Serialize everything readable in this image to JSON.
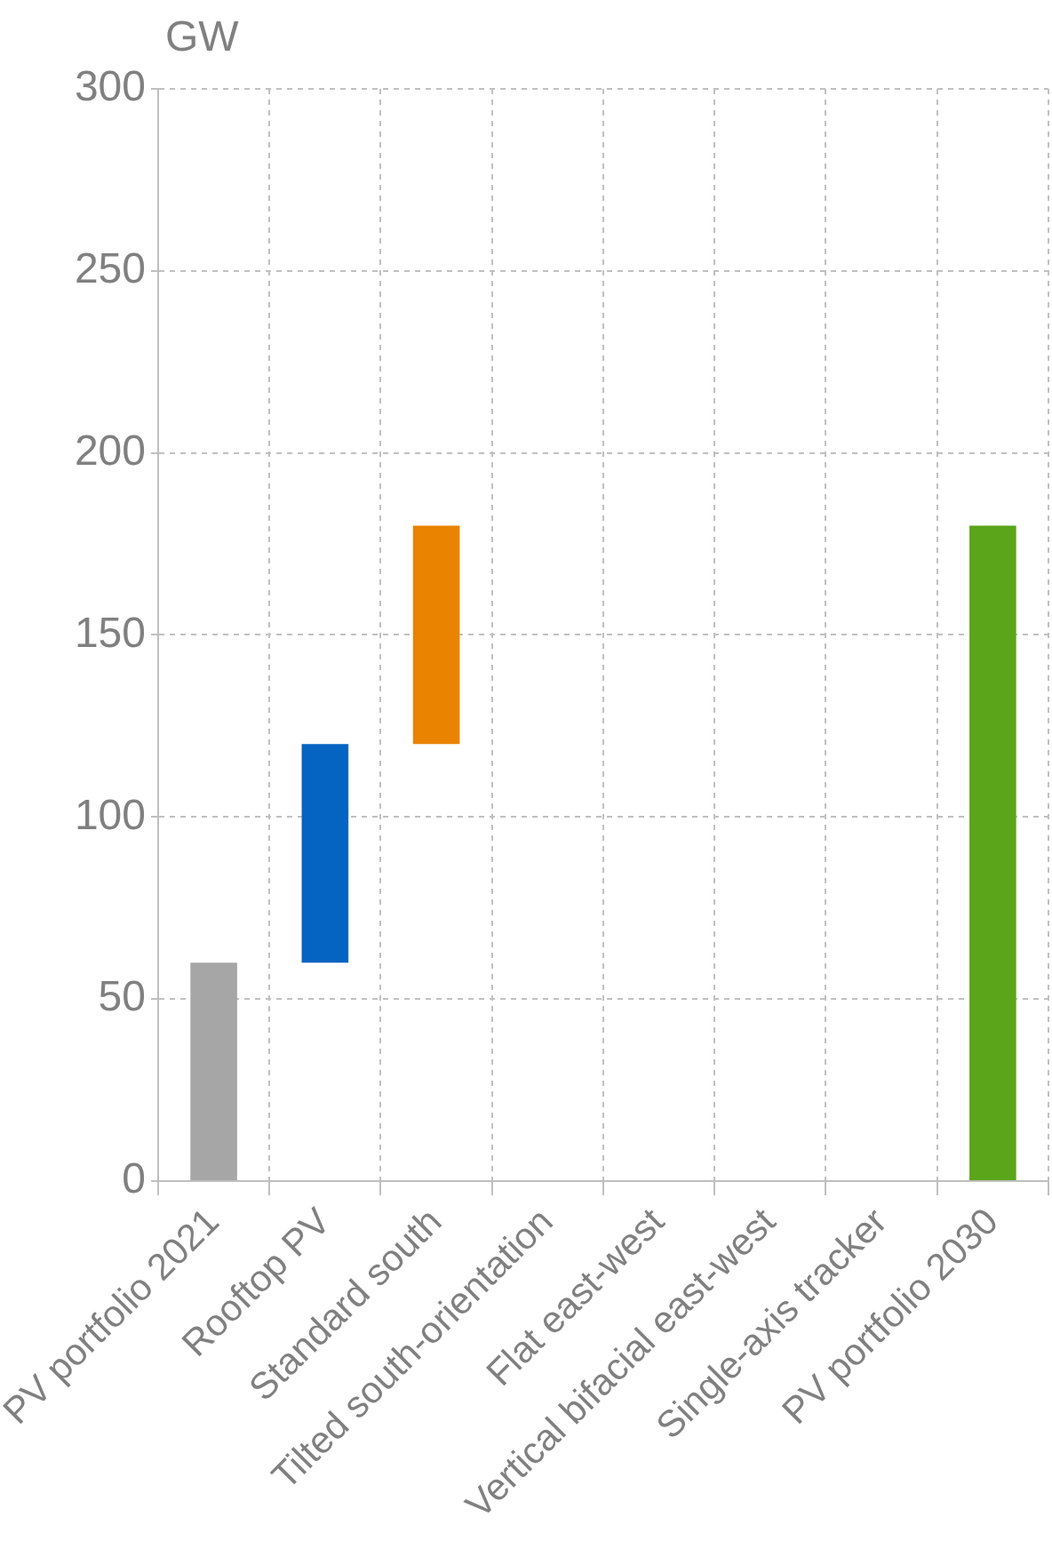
{
  "chart_data": {
    "type": "bar",
    "ylabel": "GW",
    "categories": [
      "PV portfolio 2021",
      "Rooftop PV",
      "Standard south",
      "Tilted south-orientation",
      "Flat east-west",
      "Vertical bifacial east-west",
      "Single-axis tracker",
      "PV portfolio 2030"
    ],
    "values": [
      60,
      60,
      60,
      null,
      null,
      null,
      null,
      180
    ],
    "base": [
      0,
      60,
      120,
      null,
      null,
      null,
      null,
      0
    ],
    "colors": [
      "#a6a6a6",
      "#0563c1",
      "#e98300",
      null,
      null,
      null,
      null,
      "#5aa519"
    ],
    "ylim": [
      0,
      300
    ],
    "yticks": [
      0,
      50,
      100,
      150,
      200,
      250,
      300
    ],
    "grid": true,
    "legend": false
  }
}
